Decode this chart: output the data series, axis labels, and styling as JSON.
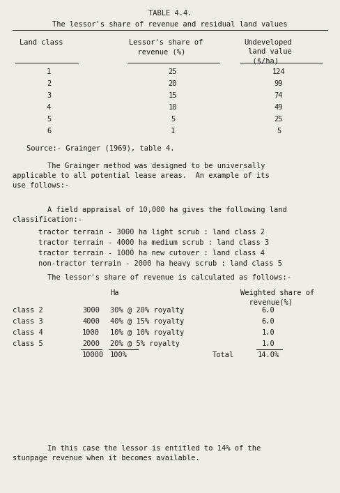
{
  "title": "TABLE 4.4.",
  "subtitle": "The lessor's share of revenue and residual land values",
  "col_header1": "Land class",
  "col_header2": "Lessor's share of\n  revenue (%)",
  "col_header3": "Undeveloped\n land value\n  ($/ha)",
  "table_data": [
    [
      "1",
      "25",
      "124"
    ],
    [
      "2",
      "20",
      "99"
    ],
    [
      "3",
      "15",
      "74"
    ],
    [
      "4",
      "10",
      "49"
    ],
    [
      "5",
      "5",
      "25"
    ],
    [
      "6",
      "1",
      "5"
    ]
  ],
  "source_note": "Source:- Grainger (1969), table 4.",
  "para1": "        The Grainger method was designed to be universally\napplicable to all potential lease areas.  An example of its\nuse follows:-",
  "para2": "        A field appraisal of 10,000 ha gives the following land\nclassification:-",
  "bullet_lines": [
    "tractor terrain - 3000 ha light scrub : land class 2",
    "tractor terrain - 4000 ha medium scrub : land class 3",
    "tractor terrain - 1000 ha new cutover : land class 4",
    "non-tractor terrain - 2000 ha heavy scrub : land class 5"
  ],
  "para3": "        The lessor's share of revenue is calculated as follows:-",
  "calc_header_ha": "Ha",
  "calc_header_ws": "Weighted share of\n  revenue(%)",
  "calc_rows": [
    [
      "class 2",
      "3000",
      "30% @ 20% royalty",
      "6.0"
    ],
    [
      "class 3",
      "4000",
      "40% @ 15% royalty",
      "6.0"
    ],
    [
      "class 4",
      "1000",
      "10% @ 10% royalty",
      "1.0"
    ],
    [
      "class 5",
      "2000",
      "20% @ 5% royalty",
      "1.0"
    ]
  ],
  "total_ha": "10000",
  "total_pct": "100%",
  "total_label": "Total",
  "total_val": "14.0%",
  "para4": "        In this case the lessor is entitled to 14% of the\nstunpage revenue when it becomes available.",
  "bg_color": "#f0ede8",
  "text_color": "#1a1a1a",
  "font_size": 7.5,
  "mono_font": "DejaVu Sans Mono",
  "fig_w": 4.88,
  "fig_h": 7.07,
  "dpi": 100
}
